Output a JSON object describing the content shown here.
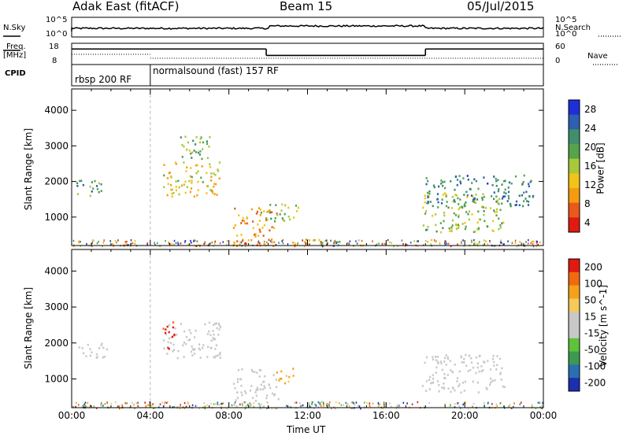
{
  "header": {
    "left_title": "Adak East (fitACF)",
    "center_title": "Beam 15",
    "right_title": "05/Jul/2015"
  },
  "noise_panel": {
    "left_label": "N.Sky",
    "right_label": "N.Search",
    "left_ticks": [
      "10^5",
      "10^0"
    ],
    "right_ticks": [
      "10^5",
      "10^0"
    ]
  },
  "freq_panel": {
    "left_label_line1": "Freq.",
    "left_label_line2": "[MHz]",
    "right_label": "Nave",
    "left_ticks": [
      "18",
      "8"
    ],
    "right_ticks": [
      "60",
      "0"
    ],
    "freq_steps": [
      {
        "start_hour": 0.0,
        "end_hour": 9.9,
        "freq_mhz": 15.4
      },
      {
        "start_hour": 9.9,
        "end_hour": 18.0,
        "freq_mhz": 12.0
      },
      {
        "start_hour": 18.0,
        "end_hour": 24.0,
        "freq_mhz": 15.4
      }
    ]
  },
  "cpid_panel": {
    "label": "CPID",
    "segments": [
      {
        "start_hour": 0.0,
        "name": "rbsp 200 RF"
      },
      {
        "start_hour": 4.0,
        "name": "normalsound (fast) 157 RF"
      }
    ]
  },
  "colors": {
    "power_scale": [
      "#1f2fd8",
      "#2e5fb0",
      "#3f8f6a",
      "#55a34a",
      "#a8c83a",
      "#f2c318",
      "#f59b12",
      "#e8591a",
      "#e01a10"
    ],
    "velocity_scale": [
      "#e01a10",
      "#f06a10",
      "#f5a21a",
      "#f5c95a",
      "#c8c8c8",
      "#c8c8c8",
      "#5ec23a",
      "#3c9a50",
      "#2a6fb0",
      "#1c2fb0"
    ]
  },
  "chart_data": [
    {
      "type": "heatmap",
      "name": "power",
      "xlabel": "",
      "ylabel": "Slant Range [km]",
      "xlim": [
        0,
        24
      ],
      "ylim": [
        200,
        4600
      ],
      "yticks": [
        1000,
        2000,
        3000,
        4000
      ],
      "colorbar": {
        "label": "Power [dB]",
        "ticks": [
          "28",
          "24",
          "20",
          "16",
          "12",
          "8",
          "4"
        ],
        "range": [
          0,
          30
        ]
      },
      "echo_regions": [
        {
          "t0": 0.2,
          "t1": 1.8,
          "r0": 1600,
          "r1": 2050,
          "value": 10
        },
        {
          "t0": 4.6,
          "t1": 7.6,
          "r0": 1600,
          "r1": 2600,
          "value": 18
        },
        {
          "t0": 5.5,
          "t1": 7.0,
          "r0": 2500,
          "r1": 3300,
          "value": 12
        },
        {
          "t0": 8.2,
          "t1": 10.5,
          "r0": 200,
          "r1": 1300,
          "value": 22
        },
        {
          "t0": 9.5,
          "t1": 11.5,
          "r0": 900,
          "r1": 1400,
          "value": 14
        },
        {
          "t0": 11.2,
          "t1": 14.5,
          "r0": 200,
          "r1": 400,
          "value": 16
        },
        {
          "t0": 17.8,
          "t1": 22.0,
          "r0": 600,
          "r1": 1700,
          "value": 14
        },
        {
          "t0": 18.0,
          "t1": 23.5,
          "r0": 1300,
          "r1": 2200,
          "value": 8
        }
      ]
    },
    {
      "type": "heatmap",
      "name": "velocity",
      "xlabel": "Time UT",
      "ylabel": "Slant Range [km]",
      "xlim": [
        0,
        24
      ],
      "ylim": [
        200,
        4600
      ],
      "xticks": [
        "00:00",
        "04:00",
        "08:00",
        "12:00",
        "16:00",
        "20:00",
        "00:00"
      ],
      "yticks": [
        1000,
        2000,
        3000,
        4000
      ],
      "colorbar": {
        "label": "Velocity [m s^-1]",
        "ticks": [
          "200",
          "100",
          "50",
          "15",
          "-15",
          "-50",
          "-100",
          "-200"
        ],
        "range": [
          -250,
          250
        ]
      },
      "echo_regions": [
        {
          "t0": 0.2,
          "t1": 1.8,
          "r0": 1600,
          "r1": 2050,
          "value": 0
        },
        {
          "t0": 4.6,
          "t1": 7.6,
          "r0": 1600,
          "r1": 2600,
          "value": 0
        },
        {
          "t0": 4.6,
          "t1": 5.2,
          "r0": 1800,
          "r1": 2600,
          "value": 220
        },
        {
          "t0": 8.2,
          "t1": 10.5,
          "r0": 200,
          "r1": 1300,
          "value": 0
        },
        {
          "t0": 10.3,
          "t1": 11.3,
          "r0": 900,
          "r1": 1350,
          "value": 120
        },
        {
          "t0": 11.2,
          "t1": 14.5,
          "r0": 200,
          "r1": 400,
          "value": 20
        },
        {
          "t0": 17.8,
          "t1": 22.0,
          "r0": 600,
          "r1": 1700,
          "value": 0
        }
      ]
    }
  ]
}
